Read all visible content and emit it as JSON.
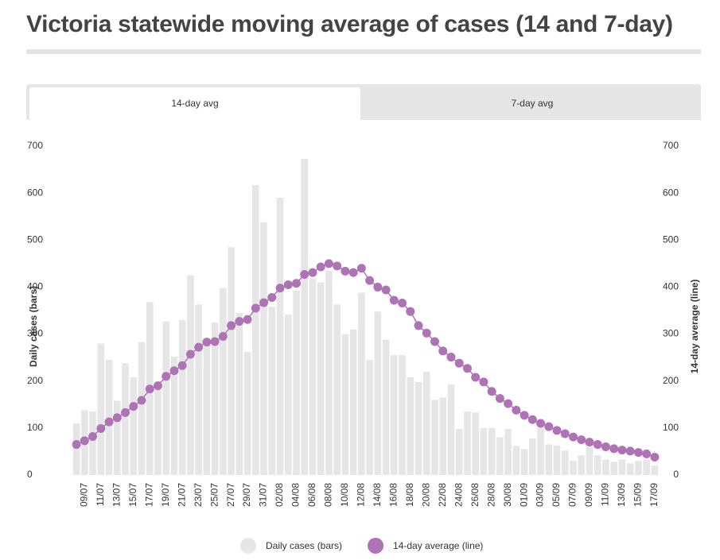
{
  "header": {
    "title": "Victoria statewide moving average of cases (14 and 7-day)"
  },
  "tabs": [
    "14-day avg",
    "7-day avg"
  ],
  "chart_data": {
    "type": "combo",
    "ylabel": "Daily cases (bars)",
    "y2label": "14-day average (line)",
    "categories": [
      null,
      "09/07",
      null,
      "11/07",
      null,
      "13/07",
      null,
      "15/07",
      null,
      "17/07",
      null,
      "19/07",
      null,
      "21/07",
      null,
      "23/07",
      null,
      "25/07",
      null,
      "27/07",
      null,
      "29/07",
      null,
      "31/07",
      null,
      "02/08",
      null,
      "04/08",
      null,
      "06/08",
      null,
      "08/08",
      null,
      "10/08",
      null,
      "12/08",
      null,
      "14/08",
      null,
      "16/08",
      null,
      "18/08",
      null,
      "20/08",
      null,
      "22/08",
      null,
      "24/08",
      null,
      "26/08",
      null,
      "28/08",
      null,
      "30/08",
      null,
      "01/09",
      null,
      "03/09",
      null,
      "05/09",
      null,
      "07/09",
      null,
      "09/09",
      null,
      "11/09",
      null,
      "13/09",
      null,
      "15/09",
      null,
      "17/09"
    ],
    "series": [
      {
        "name": "Daily cases (bars)",
        "type": "bar",
        "color": "#e6e6e6",
        "values": [
          110,
          138,
          135,
          280,
          245,
          158,
          238,
          208,
          283,
          368,
          200,
          327,
          252,
          330,
          425,
          363,
          280,
          325,
          398,
          485,
          345,
          262,
          617,
          538,
          358,
          590,
          342,
          393,
          673,
          418,
          410,
          435,
          363,
          300,
          310,
          388,
          245,
          348,
          288,
          255,
          255,
          208,
          198,
          220,
          160,
          165,
          193,
          98,
          135,
          133,
          100,
          100,
          80,
          98,
          62,
          55,
          78,
          100,
          65,
          63,
          52,
          30,
          42,
          60,
          42,
          33,
          28,
          33,
          25,
          30,
          33,
          20
        ]
      },
      {
        "name": "14-day average (line)",
        "type": "line",
        "axis": "y2",
        "color": "#ad73b4",
        "values": [
          65,
          73,
          82,
          99,
          113,
          122,
          133,
          146,
          159,
          183,
          190,
          210,
          222,
          233,
          257,
          272,
          283,
          284,
          295,
          318,
          327,
          331,
          355,
          367,
          378,
          398,
          405,
          408,
          427,
          431,
          443,
          450,
          445,
          434,
          431,
          440,
          414,
          400,
          394,
          372,
          366,
          348,
          318,
          302,
          284,
          264,
          251,
          238,
          227,
          208,
          198,
          178,
          163,
          152,
          138,
          127,
          118,
          110,
          103,
          95,
          88,
          81,
          75,
          70,
          65,
          60,
          56,
          53,
          51,
          48,
          45,
          38
        ]
      }
    ],
    "ylim": [
      0,
      700
    ],
    "yticks": [
      0,
      100,
      200,
      300,
      400,
      500,
      600,
      700
    ],
    "y2lim": [
      0,
      700
    ],
    "y2ticks": [
      0,
      100,
      200,
      300,
      400,
      500,
      600,
      700
    ],
    "grid": false
  }
}
